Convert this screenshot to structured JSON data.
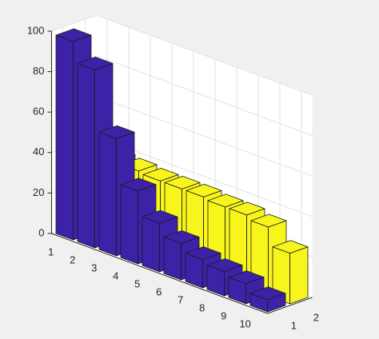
{
  "chart_data": {
    "type": "bar3",
    "categories": [
      1,
      2,
      3,
      4,
      5,
      6,
      7,
      8,
      9,
      10
    ],
    "rows": [
      1,
      2
    ],
    "series": [
      {
        "color": "#3d22a8",
        "values": [
          98,
          88,
          58,
          36,
          24,
          18,
          14,
          12,
          10,
          6
        ]
      },
      {
        "color": "#f7f51c",
        "values": [
          40,
          39,
          38,
          37,
          37,
          37,
          36,
          36,
          34,
          25
        ]
      }
    ],
    "zlim": [
      0,
      100
    ],
    "zticks": [
      0,
      20,
      40,
      60,
      80,
      100
    ],
    "grid": true
  }
}
